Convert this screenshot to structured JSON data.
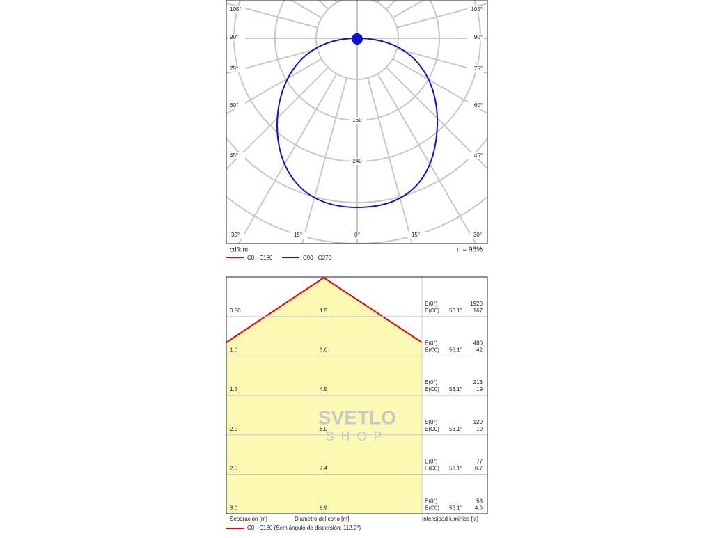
{
  "polar": {
    "left_labels": [
      "105°",
      "90°",
      "75°",
      "60°",
      "45°"
    ],
    "right_labels": [
      "105°",
      "90°",
      "75°",
      "60°",
      "45°"
    ],
    "bottom_labels": [
      "30°",
      "15°",
      "0°",
      "15°",
      "30°"
    ],
    "radial_labels": [
      "160",
      "240"
    ],
    "unit": "cd/klm",
    "efficiency": "η = 96%",
    "legend": [
      "C0 - C180",
      "C90 - C270"
    ]
  },
  "watermark": {
    "line1": "SVETLO",
    "line2": "SHOP"
  },
  "cone": {
    "rows": [
      {
        "separation": "0.50",
        "diameter": "1.5",
        "e0_label": "E(0°)",
        "e0": "1920",
        "ec0_label": "E(C0)",
        "angle": "56.1°",
        "ec0": "167"
      },
      {
        "separation": "1.0",
        "diameter": "3.0",
        "e0_label": "E(0°)",
        "e0": "480",
        "ec0_label": "E(C0)",
        "angle": "56.1°",
        "ec0": "42"
      },
      {
        "separation": "1.5",
        "diameter": "4.5",
        "e0_label": "E(0°)",
        "e0": "213",
        "ec0_label": "E(C0)",
        "angle": "56.1°",
        "ec0": "19"
      },
      {
        "separation": "2.0",
        "diameter": "6.0",
        "e0_label": "E(0°)",
        "e0": "120",
        "ec0_label": "E(C0)",
        "angle": "56.1°",
        "ec0": "10"
      },
      {
        "separation": "2.5",
        "diameter": "7.4",
        "e0_label": "E(0°)",
        "e0": "77",
        "ec0_label": "E(C0)",
        "angle": "56.1°",
        "ec0": "6.7"
      },
      {
        "separation": "3.0",
        "diameter": "8.9",
        "e0_label": "E(0°)",
        "e0": "53",
        "ec0_label": "E(C0)",
        "angle": "56.1°",
        "ec0": "4.6"
      }
    ],
    "separation_label": "Separación [m]",
    "diameter_label": "Diametro del cono [m]",
    "intensity_label": "Intensidad luminica [lx]",
    "legend": "C0 - C180 (Semiángulo de dispersión: 112.2°)"
  }
}
